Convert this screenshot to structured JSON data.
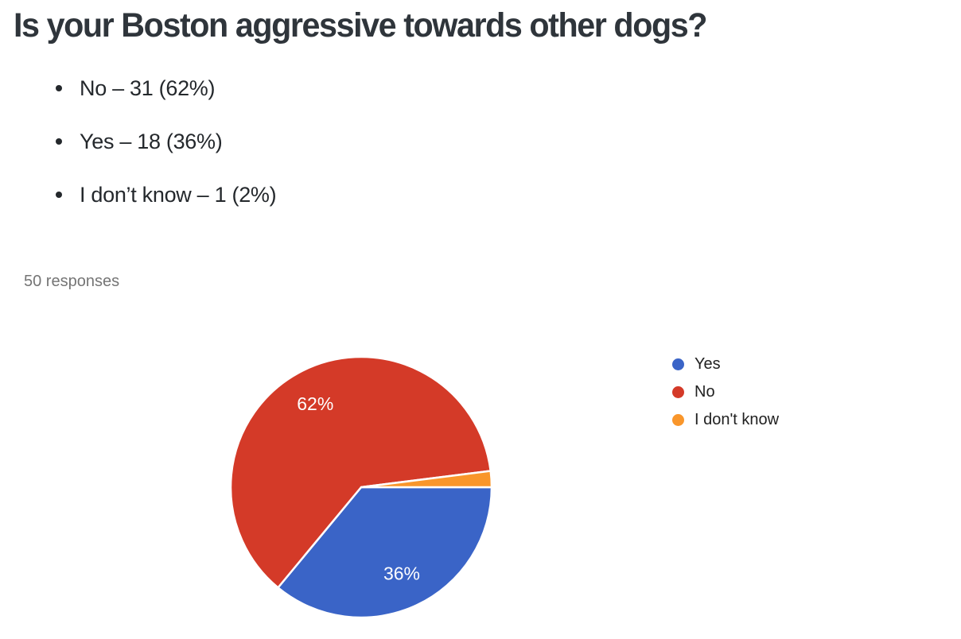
{
  "title": "Is your Boston aggressive towards other dogs?",
  "bullets": [
    "No – 31 (62%)",
    "Yes – 18 (36%)",
    "I don’t know – 1 (2%)"
  ],
  "responses_label": "50 responses",
  "colors": {
    "title_text": "#2f353b",
    "body_text": "#24282c",
    "muted_text": "#757575",
    "legend_text": "#212121",
    "slice_label_text": "#ffffff",
    "slice_border": "#ffffff"
  },
  "chart_data": {
    "type": "pie",
    "title": "",
    "responses_text": "50 responses",
    "start_angle_deg": 0,
    "direction": "clockwise",
    "legend_position": "right",
    "slices": [
      {
        "name": "Yes",
        "value": 18,
        "percent": 36,
        "label": "36%",
        "color": "#3a64c7"
      },
      {
        "name": "No",
        "value": 31,
        "percent": 62,
        "label": "62%",
        "color": "#d43a28"
      },
      {
        "name": "I don't know",
        "value": 1,
        "percent": 2,
        "label": "",
        "color": "#f9962b"
      }
    ]
  }
}
